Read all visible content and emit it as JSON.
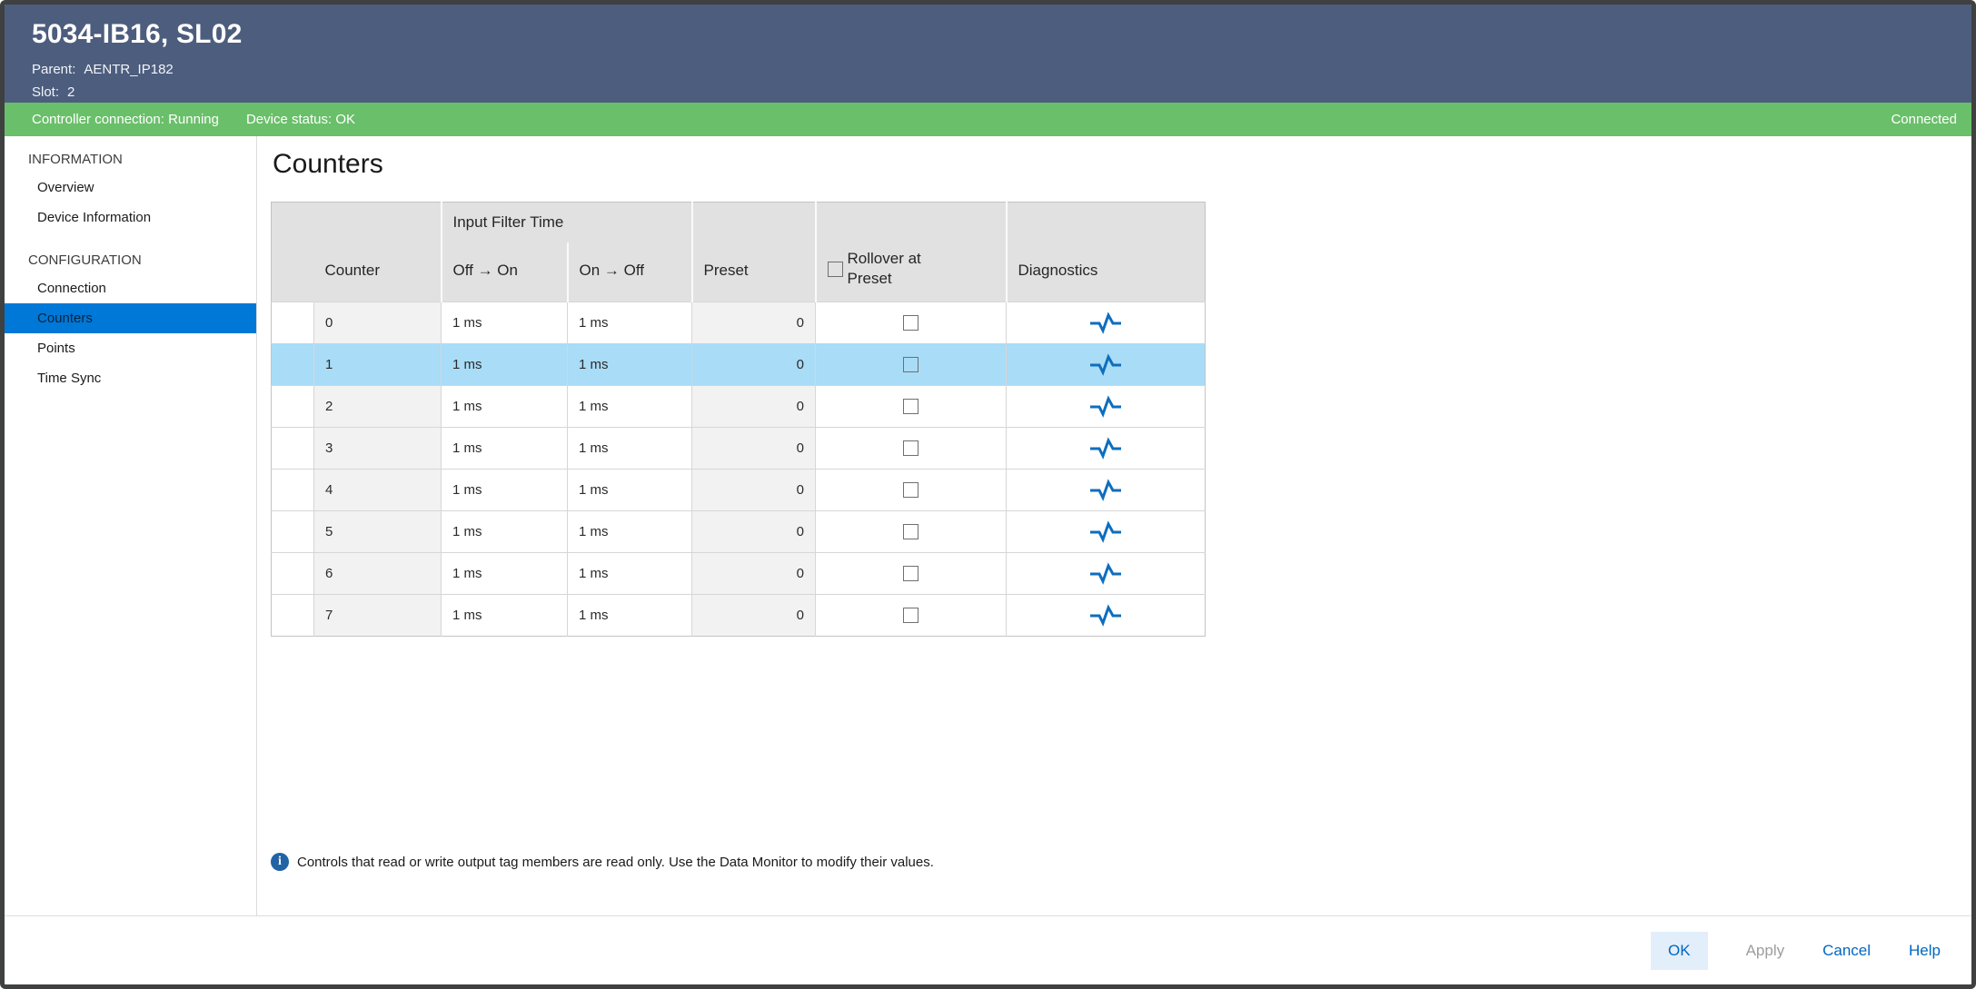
{
  "window": {
    "title": "5034-IB16, SL02",
    "parent_label": "Parent:",
    "parent_value": "AENTR_IP182",
    "slot_label": "Slot:",
    "slot_value": "2"
  },
  "status_bar": {
    "controller": "Controller connection: Running",
    "device": "Device status: OK",
    "connection": "Connected"
  },
  "sidebar": {
    "sections": [
      {
        "label": "INFORMATION",
        "items": [
          {
            "label": "Overview",
            "selected": false
          },
          {
            "label": "Device Information",
            "selected": false
          }
        ]
      },
      {
        "label": "CONFIGURATION",
        "items": [
          {
            "label": "Connection",
            "selected": false
          },
          {
            "label": "Counters",
            "selected": true
          },
          {
            "label": "Points",
            "selected": false
          },
          {
            "label": "Time Sync",
            "selected": false
          }
        ]
      }
    ]
  },
  "main": {
    "title": "Counters",
    "table": {
      "group_header": "Input Filter Time",
      "columns": [
        "Counter",
        "Off → On",
        "On → Off",
        "Preset",
        "Rollover at Preset",
        "Diagnostics"
      ],
      "header_rollover_checked": false,
      "rows": [
        {
          "counter": "0",
          "off_on": "1 ms",
          "on_off": "1 ms",
          "preset": "0",
          "rollover": false,
          "highlighted": false
        },
        {
          "counter": "1",
          "off_on": "1 ms",
          "on_off": "1 ms",
          "preset": "0",
          "rollover": false,
          "highlighted": true
        },
        {
          "counter": "2",
          "off_on": "1 ms",
          "on_off": "1 ms",
          "preset": "0",
          "rollover": false,
          "highlighted": false
        },
        {
          "counter": "3",
          "off_on": "1 ms",
          "on_off": "1 ms",
          "preset": "0",
          "rollover": false,
          "highlighted": false
        },
        {
          "counter": "4",
          "off_on": "1 ms",
          "on_off": "1 ms",
          "preset": "0",
          "rollover": false,
          "highlighted": false
        },
        {
          "counter": "5",
          "off_on": "1 ms",
          "on_off": "1 ms",
          "preset": "0",
          "rollover": false,
          "highlighted": false
        },
        {
          "counter": "6",
          "off_on": "1 ms",
          "on_off": "1 ms",
          "preset": "0",
          "rollover": false,
          "highlighted": false
        },
        {
          "counter": "7",
          "off_on": "1 ms",
          "on_off": "1 ms",
          "preset": "0",
          "rollover": false,
          "highlighted": false
        }
      ]
    },
    "note": "Controls that read or write output tag members are read only. Use the Data Monitor to modify their values.",
    "info_icon_glyph": "i"
  },
  "footer": {
    "buttons": [
      {
        "label": "OK",
        "style": "primary"
      },
      {
        "label": "Apply",
        "style": "disabled"
      },
      {
        "label": "Cancel",
        "style": "link"
      },
      {
        "label": "Help",
        "style": "link"
      }
    ]
  },
  "colors": {
    "header_bg": "#4d5d7e",
    "status_bg": "#6abf6a",
    "accent": "#0078d7",
    "row_highlight": "#a9dcf6",
    "diagnostics_icon": "#0d6ebe",
    "link_blue": "#0067c0"
  }
}
